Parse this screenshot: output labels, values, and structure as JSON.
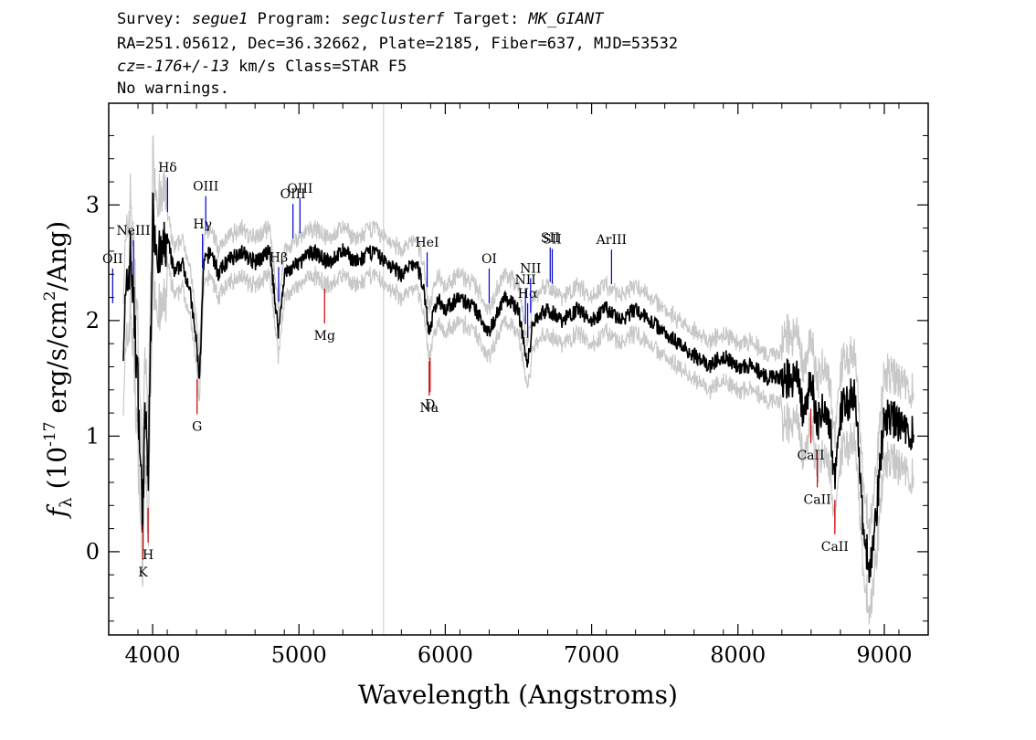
{
  "header": {
    "survey_label": "Survey:",
    "survey": "segue1",
    "program_label": "Program:",
    "program": "segclusterf",
    "target_label": "Target:",
    "target": "MK_GIANT",
    "line2": "RA=251.05612, Dec=36.32662, Plate=2185, Fiber=637, MJD=53532",
    "cz_label": "cz=",
    "cz": "-176+/-13",
    "cz_rest": " km/s Class=STAR F5",
    "warnings": "No warnings."
  },
  "colors": {
    "flux": "#000000",
    "error": "#c8c8c8",
    "emission": "#0000cc",
    "absorption": "#cc0000",
    "sky_line": "#c8c8c8"
  },
  "chart_data": {
    "type": "line",
    "xlabel": "Wavelength (Angstroms)",
    "ylabel": "f_λ (10^-17 erg/s/cm^2/Ang)",
    "xlim": [
      3700,
      9300
    ],
    "ylim": [
      -0.72,
      3.88
    ],
    "x_ticks": [
      4000,
      5000,
      6000,
      7000,
      8000,
      9000
    ],
    "y_ticks": [
      0,
      1,
      2,
      3
    ],
    "sky_line_x": 5578,
    "series": [
      {
        "x": [
          3800,
          3850,
          3900,
          3930,
          3950,
          3970,
          4000,
          4050,
          4100,
          4150,
          4200,
          4250,
          4300,
          4320,
          4350,
          4400,
          4450,
          4500,
          4600,
          4700,
          4800,
          4860,
          4900,
          5000,
          5100,
          5200,
          5300,
          5400,
          5500,
          5600,
          5700,
          5800,
          5850,
          5890,
          5950,
          6000,
          6100,
          6200,
          6300,
          6400,
          6500,
          6563,
          6600,
          6700,
          6800,
          6900,
          7000,
          7100,
          7200,
          7300,
          7400,
          7500,
          7600,
          7700,
          7800,
          7900,
          8000,
          8100,
          8200,
          8300,
          8400,
          8450,
          8500,
          8540,
          8600,
          8662,
          8700,
          8800,
          8850,
          8900,
          8950,
          9000,
          9100,
          9200
        ],
        "y": [
          1.9,
          2.6,
          1.4,
          0.3,
          1.2,
          0.6,
          2.9,
          2.5,
          2.7,
          2.4,
          2.5,
          2.3,
          1.8,
          1.5,
          2.5,
          2.6,
          2.4,
          2.5,
          2.6,
          2.5,
          2.6,
          1.9,
          2.4,
          2.5,
          2.6,
          2.5,
          2.6,
          2.5,
          2.6,
          2.5,
          2.4,
          2.5,
          2.3,
          1.9,
          2.2,
          2.1,
          2.2,
          2.1,
          1.9,
          2.2,
          2.1,
          1.6,
          2.0,
          2.1,
          2.0,
          2.1,
          2.0,
          2.1,
          2.0,
          2.1,
          2.0,
          1.9,
          1.8,
          1.7,
          1.6,
          1.7,
          1.6,
          1.6,
          1.5,
          1.5,
          1.5,
          1.2,
          1.5,
          1.1,
          1.3,
          0.7,
          1.2,
          1.4,
          0.3,
          -0.2,
          0.4,
          1.2,
          1.1,
          1.0
        ]
      }
    ],
    "emission_lines": [
      {
        "label": "NeIII",
        "x": 3869
      },
      {
        "label": "Hδ",
        "x": 4102
      },
      {
        "label": "Hγ",
        "x": 4341
      },
      {
        "label": "OIII",
        "x": 4363
      },
      {
        "label": "Hβ",
        "x": 4861
      },
      {
        "label": "OIII",
        "x": 4959
      },
      {
        "label": "OIII",
        "x": 5007
      },
      {
        "label": "HeI",
        "x": 5876
      },
      {
        "label": "OI",
        "x": 6300
      },
      {
        "label": "NII",
        "x": 6548
      },
      {
        "label": "Hα",
        "x": 6563
      },
      {
        "label": "NII",
        "x": 6583
      },
      {
        "label": "SII",
        "x": 6717
      },
      {
        "label": "SII",
        "x": 6731
      },
      {
        "label": "ArIII",
        "x": 7136
      },
      {
        "label": "OII",
        "x": 3727
      }
    ],
    "absorption_lines": [
      {
        "label": "K",
        "x": 3934
      },
      {
        "label": "H",
        "x": 3969
      },
      {
        "label": "G",
        "x": 4304
      },
      {
        "label": "Mg",
        "x": 5175
      },
      {
        "label": "Na",
        "x": 5890
      },
      {
        "label": "D",
        "x": 5896
      },
      {
        "label": "CaII",
        "x": 8498
      },
      {
        "label": "CaII",
        "x": 8542
      },
      {
        "label": "CaII",
        "x": 8662
      }
    ]
  }
}
